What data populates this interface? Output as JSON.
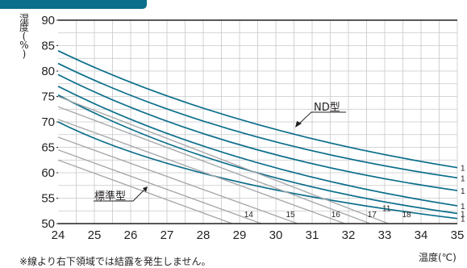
{
  "chart_data": {
    "type": "line",
    "title": "",
    "xlabel": "温度(℃)",
    "ylabel": "湿度(%)",
    "xlim": [
      24,
      35
    ],
    "ylim": [
      50,
      90
    ],
    "x_ticks": [
      24,
      25,
      26,
      27,
      28,
      29,
      30,
      31,
      32,
      33,
      34,
      35
    ],
    "y_ticks": [
      50,
      55,
      60,
      65,
      70,
      75,
      80,
      85,
      90
    ],
    "grid": true,
    "annotations": [
      {
        "text": "ND型",
        "target_series": "ND型"
      },
      {
        "text": "標準型",
        "target_series": "標準型"
      }
    ],
    "series": [
      {
        "name": "ND型",
        "label": "1",
        "color": "#0b6e8a",
        "points": [
          [
            24,
            84
          ],
          [
            29,
            70.5
          ],
          [
            35,
            61
          ]
        ]
      },
      {
        "name": "ND型",
        "label": "1",
        "color": "#0b6e8a",
        "points": [
          [
            24,
            81.5
          ],
          [
            29,
            68
          ],
          [
            35,
            59
          ]
        ]
      },
      {
        "name": "ND型",
        "label": "1",
        "color": "#0b6e8a",
        "points": [
          [
            24,
            79.3
          ],
          [
            29,
            65.5
          ],
          [
            35,
            56.5
          ]
        ]
      },
      {
        "name": "ND型",
        "label": "1",
        "color": "#0b6e8a",
        "points": [
          [
            24,
            77
          ],
          [
            29,
            63
          ],
          [
            35,
            53.5
          ]
        ]
      },
      {
        "name": "ND型",
        "label": "1",
        "color": "#0b6e8a",
        "points": [
          [
            24,
            75.3
          ],
          [
            29,
            61
          ],
          [
            35,
            52
          ]
        ]
      },
      {
        "name": "ND型",
        "label": "1",
        "color": "#0b6e8a",
        "points": [
          [
            24,
            70
          ],
          [
            28.5,
            59
          ],
          [
            35,
            51
          ]
        ]
      },
      {
        "name": "標準型",
        "label": "11",
        "color": "#a7a9ac",
        "points": [
          [
            24,
            75
          ],
          [
            33.1,
            50
          ]
        ]
      },
      {
        "name": "標準型",
        "label": "18",
        "color": "#a7a9ac",
        "points": [
          [
            24,
            73
          ],
          [
            32.6,
            50
          ]
        ]
      },
      {
        "name": "標準型",
        "label": "17",
        "color": "#a7a9ac",
        "points": [
          [
            24,
            70.5
          ],
          [
            31.9,
            50
          ]
        ]
      },
      {
        "name": "標準型",
        "label": "16",
        "color": "#a7a9ac",
        "points": [
          [
            24,
            67
          ],
          [
            30.6,
            50
          ]
        ]
      },
      {
        "name": "標準型",
        "label": "15",
        "color": "#a7a9ac",
        "points": [
          [
            24,
            64.5
          ],
          [
            29.6,
            50
          ]
        ]
      },
      {
        "name": "標準型",
        "label": "14",
        "color": "#a7a9ac",
        "points": [
          [
            24,
            62.5
          ],
          [
            28.8,
            50
          ]
        ]
      }
    ],
    "line_labels": [
      {
        "text": "14",
        "x": 29.25,
        "y": 51.3
      },
      {
        "text": "15",
        "x": 30.4,
        "y": 51.3
      },
      {
        "text": "16",
        "x": 31.65,
        "y": 51.3
      },
      {
        "text": "17",
        "x": 32.65,
        "y": 51.3
      },
      {
        "text": "18",
        "x": 33.6,
        "y": 51.3
      },
      {
        "text": "11",
        "x": 33.05,
        "y": 52.5
      }
    ],
    "footnote": "※線より右下領域では結露を発生しません。"
  }
}
